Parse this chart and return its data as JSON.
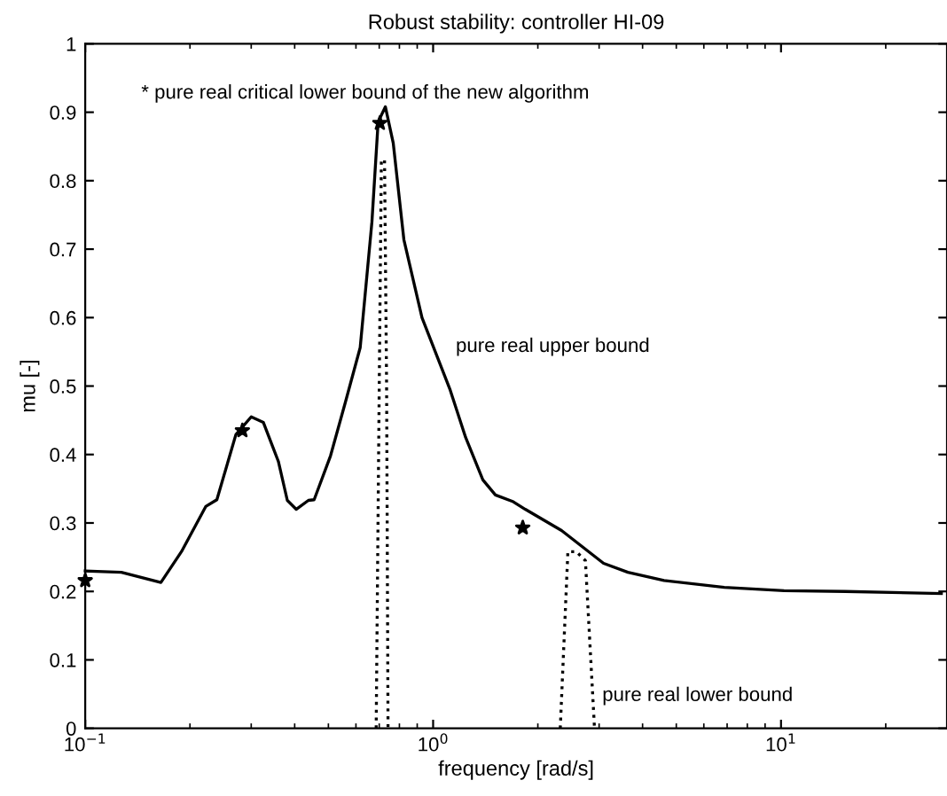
{
  "chart_data": {
    "type": "line",
    "title": "Robust stability: controller HI-09",
    "xlabel": "frequency [rad/s]",
    "ylabel": "mu [-]",
    "log": "x",
    "xlim": [
      0.1,
      30
    ],
    "xticks": [
      {
        "value": 0.1,
        "label": "10$^{−1}$"
      },
      {
        "value": 1,
        "label": "10$^{0}$"
      },
      {
        "value": 10,
        "label": "10$^{1}$"
      }
    ],
    "ylim": [
      0,
      1
    ],
    "yticks": [
      0,
      0.1,
      0.2,
      0.3,
      0.4,
      0.5,
      0.6,
      0.7,
      0.8,
      0.9,
      1
    ],
    "grid": false,
    "legend": false,
    "series": [
      {
        "name": "pure real upper bound",
        "color": "#000000",
        "line_style": "solid",
        "marker": "none",
        "x": [
          0.1,
          0.127,
          0.165,
          0.189,
          0.222,
          0.239,
          0.271,
          0.3,
          0.325,
          0.359,
          0.381,
          0.404,
          0.438,
          0.455,
          0.507,
          0.56,
          0.617,
          0.667,
          0.695,
          0.729,
          0.768,
          0.824,
          0.929,
          1.12,
          1.24,
          1.39,
          1.51,
          1.7,
          1.84,
          2.34,
          3.09,
          3.63,
          4.61,
          6.87,
          10.2,
          15.3,
          28.9
        ],
        "values": [
          0.23,
          0.228,
          0.213,
          0.258,
          0.324,
          0.334,
          0.429,
          0.455,
          0.447,
          0.39,
          0.333,
          0.32,
          0.333,
          0.334,
          0.398,
          0.477,
          0.556,
          0.74,
          0.886,
          0.908,
          0.855,
          0.714,
          0.6,
          0.494,
          0.425,
          0.363,
          0.341,
          0.331,
          0.32,
          0.289,
          0.241,
          0.228,
          0.216,
          0.206,
          0.201,
          0.2,
          0.197
        ]
      },
      {
        "name": "pure real lower bound",
        "color": "#000000",
        "line_style": "dotted",
        "marker": "none",
        "x": [
          0.686,
          0.7,
          0.71,
          0.725,
          0.735,
          0.742,
          1.5,
          2.32,
          2.44,
          2.58,
          2.74,
          2.91
        ],
        "values": [
          0,
          0.5,
          0.83,
          0.83,
          0.5,
          0,
          null,
          0,
          0.258,
          0.258,
          0.245,
          0
        ]
      },
      {
        "name": "* pure real critical lower bound of the new algorithm",
        "color": "#000000",
        "type": "scatter",
        "marker": "star",
        "x": [
          0.1,
          0.283,
          0.703,
          1.81
        ],
        "values": [
          0.216,
          0.435,
          0.884,
          0.293
        ]
      }
    ]
  }
}
